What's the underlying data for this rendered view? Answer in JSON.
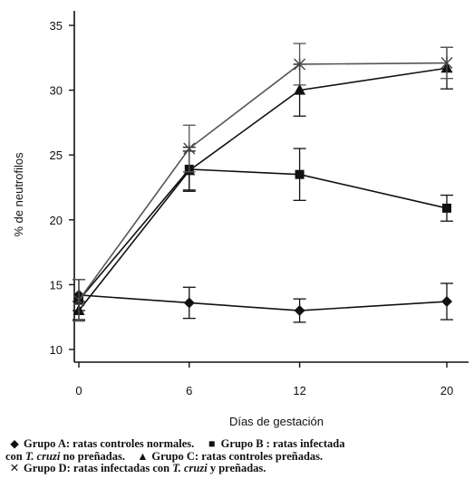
{
  "chart_data": {
    "type": "line",
    "title": "",
    "xlabel": "Días de gestación",
    "ylabel": "% de neutrofilos",
    "x": [
      0,
      6,
      12,
      20
    ],
    "x_tick_labels": [
      "0",
      "6",
      "12",
      "20"
    ],
    "ylim": [
      10,
      35
    ],
    "y_ticks": [
      10,
      15,
      20,
      25,
      30,
      35
    ],
    "y_tick_labels": [
      "10",
      "15",
      "20",
      "25",
      "30",
      "35"
    ],
    "grid": false,
    "legend_placement": "below",
    "series": [
      {
        "marker": "diamond",
        "values": [
          14.2,
          13.6,
          13.0,
          13.7
        ],
        "err": [
          1.2,
          1.2,
          0.9,
          1.4
        ]
      },
      {
        "marker": "square",
        "values": [
          13.8,
          23.9,
          23.5,
          20.9
        ],
        "err": [
          1.6,
          1.7,
          2.0,
          1.0
        ]
      },
      {
        "marker": "triangle",
        "values": [
          13.0,
          23.8,
          30.0,
          31.7
        ],
        "err": [
          0.7,
          1.5,
          2.0,
          1.6
        ]
      },
      {
        "marker": "asterisk",
        "values": [
          13.8,
          25.5,
          32.0,
          32.1
        ],
        "err": [
          1.6,
          1.8,
          1.6,
          1.2
        ]
      }
    ]
  },
  "legend": {
    "line1_a": "Grupo A:  ratas controles normales.",
    "line1_b": "Grupo B : ratas infectada",
    "line2_a": "con",
    "line2_species": "T. cruzi",
    "line2_b": "no preñadas.",
    "line2_c": "Grupo C:  ratas controles preñadas.",
    "line3_a": "Grupo D:  ratas infectadas con",
    "line3_species": "T. cruzi",
    "line3_b": "y preñadas.",
    "symbols": {
      "a": "◆",
      "b": "■",
      "c": "▲",
      "d": "✕"
    }
  }
}
